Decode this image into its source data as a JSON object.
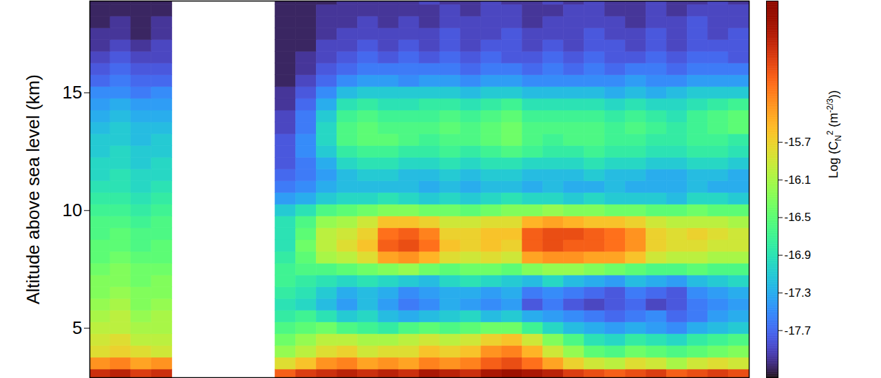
{
  "chart_data": {
    "type": "heatmap",
    "ylabel": "Altitude above sea level (km)",
    "ylim": [
      2.9,
      18.9
    ],
    "yticks": [
      5,
      10,
      15
    ],
    "xlim": [
      0,
      32
    ],
    "tick_labels": "y",
    "x": [
      0,
      1,
      2,
      3,
      9,
      10,
      11,
      12,
      13,
      14,
      15,
      16,
      17,
      18,
      19,
      20,
      21,
      22,
      23,
      24,
      25,
      26,
      27,
      28,
      29,
      30,
      31
    ],
    "y": [
      3.0,
      3.5,
      4.0,
      4.5,
      5.0,
      5.5,
      6.0,
      6.5,
      7.0,
      7.5,
      8.0,
      8.5,
      9.0,
      9.5,
      10.0,
      10.5,
      11.0,
      11.5,
      12.0,
      12.5,
      13.0,
      13.5,
      14.0,
      14.5,
      15.0,
      15.5,
      16.0,
      16.5,
      17.0,
      17.5,
      18.0,
      18.5,
      19.0
    ],
    "values": [
      [
        -14.7,
        -14.6,
        -14.8,
        -14.7,
        -15.0,
        -14.8,
        -14.7,
        -14.6,
        -14.7,
        -14.6,
        -14.7,
        -14.5,
        -14.6,
        -14.7,
        -14.5,
        -14.4,
        -14.5,
        -14.6,
        -14.8,
        -14.9,
        -15.0,
        -14.9,
        -14.8,
        -15.0,
        -14.9,
        -14.8,
        -14.9
      ],
      [
        -15.3,
        -15.2,
        -15.4,
        -15.3,
        -15.8,
        -15.6,
        -15.3,
        -15.2,
        -15.4,
        -15.3,
        -15.4,
        -15.2,
        -15.3,
        -15.2,
        -15.0,
        -14.9,
        -15.1,
        -15.4,
        -15.7,
        -15.9,
        -16.0,
        -15.8,
        -15.9,
        -16.1,
        -15.9,
        -15.8,
        -15.9
      ],
      [
        -15.8,
        -15.7,
        -15.8,
        -15.9,
        -16.2,
        -16.0,
        -15.8,
        -15.7,
        -15.9,
        -15.8,
        -15.8,
        -15.6,
        -15.7,
        -15.6,
        -15.3,
        -15.2,
        -15.5,
        -15.9,
        -16.2,
        -16.5,
        -16.6,
        -16.4,
        -16.5,
        -16.6,
        -16.5,
        -16.4,
        -16.3
      ],
      [
        -15.9,
        -15.8,
        -16.0,
        -16.0,
        -16.4,
        -16.2,
        -16.0,
        -16.0,
        -16.1,
        -16.1,
        -16.0,
        -15.9,
        -16.0,
        -15.9,
        -15.7,
        -15.6,
        -15.9,
        -16.3,
        -16.6,
        -16.9,
        -17.0,
        -16.8,
        -16.9,
        -17.0,
        -16.8,
        -16.7,
        -16.6
      ],
      [
        -16.0,
        -16.0,
        -16.1,
        -16.1,
        -16.6,
        -16.5,
        -16.4,
        -16.6,
        -16.7,
        -16.8,
        -16.6,
        -16.5,
        -16.6,
        -16.5,
        -16.4,
        -16.4,
        -16.7,
        -17.0,
        -17.2,
        -17.3,
        -17.4,
        -17.3,
        -17.4,
        -17.5,
        -17.3,
        -17.2,
        -17.1
      ],
      [
        -16.1,
        -16.0,
        -16.2,
        -16.1,
        -16.8,
        -16.7,
        -16.9,
        -17.1,
        -17.0,
        -17.2,
        -17.3,
        -17.2,
        -17.1,
        -17.0,
        -17.2,
        -17.1,
        -17.3,
        -17.4,
        -17.5,
        -17.6,
        -17.7,
        -17.6,
        -17.5,
        -17.7,
        -17.6,
        -17.4,
        -17.3
      ],
      [
        -16.2,
        -16.1,
        -16.3,
        -16.2,
        -16.9,
        -17.0,
        -17.2,
        -17.4,
        -17.2,
        -17.4,
        -17.6,
        -17.5,
        -17.3,
        -17.4,
        -17.5,
        -17.4,
        -17.8,
        -17.6,
        -17.8,
        -17.9,
        -17.8,
        -17.7,
        -17.9,
        -17.8,
        -17.6,
        -17.5,
        -17.4
      ],
      [
        -16.3,
        -16.2,
        -16.3,
        -16.3,
        -16.8,
        -16.9,
        -17.1,
        -17.3,
        -17.2,
        -17.3,
        -17.5,
        -17.4,
        -17.3,
        -17.3,
        -17.4,
        -17.3,
        -17.6,
        -17.5,
        -17.6,
        -17.7,
        -17.8,
        -17.6,
        -17.7,
        -17.8,
        -17.5,
        -17.4,
        -17.3
      ],
      [
        -16.3,
        -16.3,
        -16.4,
        -16.3,
        -16.7,
        -16.8,
        -16.9,
        -17.0,
        -16.9,
        -17.0,
        -17.1,
        -17.2,
        -17.0,
        -16.9,
        -17.0,
        -17.1,
        -17.2,
        -17.0,
        -17.2,
        -17.3,
        -17.4,
        -17.2,
        -17.3,
        -17.4,
        -17.2,
        -17.1,
        -17.0
      ],
      [
        -16.4,
        -16.3,
        -16.4,
        -16.4,
        -16.7,
        -16.6,
        -16.6,
        -16.5,
        -16.4,
        -16.3,
        -16.2,
        -16.4,
        -16.5,
        -16.4,
        -16.4,
        -16.5,
        -16.3,
        -16.2,
        -16.2,
        -16.3,
        -16.4,
        -16.5,
        -16.6,
        -16.6,
        -16.5,
        -16.6,
        -16.6
      ],
      [
        -16.5,
        -16.4,
        -16.5,
        -16.5,
        -16.8,
        -16.5,
        -16.1,
        -16.0,
        -15.8,
        -15.4,
        -15.3,
        -15.5,
        -15.8,
        -15.9,
        -15.8,
        -15.9,
        -15.4,
        -15.3,
        -15.3,
        -15.4,
        -15.4,
        -15.6,
        -15.9,
        -16.0,
        -16.0,
        -16.1,
        -16.1
      ],
      [
        -16.5,
        -16.5,
        -16.6,
        -16.5,
        -16.9,
        -16.4,
        -16.0,
        -15.8,
        -15.6,
        -15.0,
        -14.9,
        -15.1,
        -15.6,
        -15.7,
        -15.6,
        -15.7,
        -15.0,
        -14.9,
        -15.0,
        -15.0,
        -15.1,
        -15.3,
        -15.7,
        -15.8,
        -15.8,
        -15.9,
        -15.9
      ],
      [
        -16.6,
        -16.5,
        -16.6,
        -16.6,
        -16.9,
        -16.5,
        -16.0,
        -15.9,
        -15.7,
        -15.1,
        -15.0,
        -15.2,
        -15.7,
        -15.7,
        -15.6,
        -15.6,
        -15.0,
        -14.9,
        -14.9,
        -15.0,
        -15.1,
        -15.3,
        -15.7,
        -15.8,
        -15.7,
        -15.8,
        -15.9
      ],
      [
        -16.6,
        -16.6,
        -16.7,
        -16.6,
        -16.9,
        -16.6,
        -16.2,
        -16.1,
        -15.9,
        -15.6,
        -15.6,
        -15.7,
        -15.9,
        -15.9,
        -15.8,
        -15.8,
        -15.5,
        -15.4,
        -15.5,
        -15.6,
        -15.6,
        -15.7,
        -15.9,
        -16.0,
        -16.0,
        -16.0,
        -16.1
      ],
      [
        -16.7,
        -16.7,
        -16.8,
        -16.7,
        -17.1,
        -16.9,
        -16.6,
        -16.5,
        -16.4,
        -16.3,
        -16.3,
        -16.4,
        -16.4,
        -16.5,
        -16.4,
        -16.3,
        -16.3,
        -16.2,
        -16.3,
        -16.3,
        -16.4,
        -16.4,
        -16.5,
        -16.5,
        -16.4,
        -16.5,
        -16.5
      ],
      [
        -16.8,
        -16.8,
        -16.9,
        -16.8,
        -17.4,
        -17.3,
        -17.1,
        -17.0,
        -17.0,
        -16.9,
        -17.0,
        -17.1,
        -17.0,
        -17.1,
        -17.0,
        -16.9,
        -17.0,
        -17.0,
        -17.1,
        -17.0,
        -17.1,
        -17.1,
        -17.1,
        -17.2,
        -17.0,
        -17.0,
        -17.1
      ],
      [
        -16.9,
        -16.9,
        -17.0,
        -16.9,
        -17.6,
        -17.5,
        -17.3,
        -17.2,
        -17.2,
        -17.2,
        -17.2,
        -17.3,
        -17.2,
        -17.3,
        -17.2,
        -17.2,
        -17.3,
        -17.2,
        -17.3,
        -17.3,
        -17.2,
        -17.3,
        -17.3,
        -17.3,
        -17.2,
        -17.3,
        -17.3
      ],
      [
        -17.0,
        -16.9,
        -17.0,
        -17.0,
        -17.7,
        -17.6,
        -17.4,
        -17.2,
        -17.1,
        -17.1,
        -17.2,
        -17.2,
        -17.1,
        -17.2,
        -17.1,
        -17.1,
        -17.2,
        -17.2,
        -17.2,
        -17.1,
        -17.2,
        -17.2,
        -17.3,
        -17.3,
        -17.2,
        -17.2,
        -17.3
      ],
      [
        -17.0,
        -17.0,
        -17.1,
        -17.0,
        -17.8,
        -17.6,
        -17.3,
        -17.0,
        -16.9,
        -16.9,
        -17.0,
        -17.0,
        -16.9,
        -17.0,
        -16.9,
        -16.9,
        -17.0,
        -17.0,
        -17.0,
        -16.9,
        -17.0,
        -17.0,
        -17.1,
        -17.1,
        -17.0,
        -17.0,
        -17.1
      ],
      [
        -17.1,
        -17.0,
        -17.1,
        -17.1,
        -17.8,
        -17.5,
        -17.1,
        -16.8,
        -16.7,
        -16.7,
        -16.8,
        -16.8,
        -16.7,
        -16.8,
        -16.7,
        -16.6,
        -16.7,
        -16.8,
        -16.8,
        -16.7,
        -16.8,
        -16.8,
        -16.9,
        -16.9,
        -16.8,
        -16.8,
        -16.9
      ],
      [
        -17.1,
        -17.1,
        -17.2,
        -17.1,
        -17.8,
        -17.5,
        -17.0,
        -16.6,
        -16.5,
        -16.5,
        -16.6,
        -16.7,
        -16.6,
        -16.6,
        -16.5,
        -16.4,
        -16.6,
        -16.7,
        -16.6,
        -16.6,
        -16.7,
        -16.7,
        -16.8,
        -16.8,
        -16.7,
        -16.7,
        -16.8
      ],
      [
        -17.2,
        -17.1,
        -17.2,
        -17.2,
        -17.9,
        -17.6,
        -17.0,
        -16.6,
        -16.5,
        -16.6,
        -16.6,
        -16.6,
        -16.5,
        -16.6,
        -16.5,
        -16.4,
        -16.6,
        -16.6,
        -16.6,
        -16.6,
        -16.7,
        -16.6,
        -16.7,
        -16.8,
        -16.7,
        -16.6,
        -16.5
      ],
      [
        -17.3,
        -17.2,
        -17.3,
        -17.3,
        -17.9,
        -17.6,
        -17.1,
        -16.7,
        -16.6,
        -16.7,
        -16.7,
        -16.7,
        -16.6,
        -16.7,
        -16.6,
        -16.5,
        -16.7,
        -16.7,
        -16.7,
        -16.7,
        -16.8,
        -16.7,
        -16.8,
        -16.9,
        -16.7,
        -16.6,
        -16.5
      ],
      [
        -17.4,
        -17.3,
        -17.4,
        -17.4,
        -18.0,
        -17.7,
        -17.3,
        -16.9,
        -16.8,
        -16.9,
        -16.9,
        -16.8,
        -16.8,
        -16.9,
        -16.8,
        -16.7,
        -16.9,
        -16.9,
        -16.9,
        -16.9,
        -17.0,
        -16.9,
        -17.0,
        -17.0,
        -16.9,
        -16.8,
        -16.7
      ],
      [
        -17.5,
        -17.5,
        -17.6,
        -17.5,
        -18.0,
        -17.8,
        -17.5,
        -17.2,
        -17.1,
        -17.1,
        -17.1,
        -17.1,
        -17.1,
        -17.2,
        -17.1,
        -17.1,
        -17.2,
        -17.2,
        -17.2,
        -17.2,
        -17.3,
        -17.2,
        -17.3,
        -17.2,
        -17.1,
        -17.1,
        -17.1
      ],
      [
        -17.7,
        -17.6,
        -17.7,
        -17.7,
        -18.1,
        -17.9,
        -17.7,
        -17.5,
        -17.4,
        -17.4,
        -17.5,
        -17.4,
        -17.4,
        -17.5,
        -17.4,
        -17.4,
        -17.5,
        -17.5,
        -17.5,
        -17.5,
        -17.5,
        -17.4,
        -17.5,
        -17.5,
        -17.4,
        -17.4,
        -17.4
      ],
      [
        -17.8,
        -17.7,
        -17.8,
        -17.8,
        -18.1,
        -18.0,
        -17.8,
        -17.7,
        -17.6,
        -17.6,
        -17.6,
        -17.6,
        -17.6,
        -17.7,
        -17.6,
        -17.6,
        -17.7,
        -17.6,
        -17.7,
        -17.6,
        -17.7,
        -17.6,
        -17.6,
        -17.7,
        -17.6,
        -17.6,
        -17.6
      ],
      [
        -17.9,
        -17.8,
        -17.9,
        -17.9,
        -18.1,
        -18.0,
        -17.9,
        -17.8,
        -17.7,
        -17.8,
        -17.7,
        -17.8,
        -17.7,
        -17.8,
        -17.7,
        -17.8,
        -17.8,
        -17.7,
        -17.8,
        -17.7,
        -17.8,
        -17.8,
        -17.7,
        -17.8,
        -17.7,
        -17.7,
        -17.8
      ],
      [
        -18.0,
        -17.9,
        -18.0,
        -17.9,
        -18.1,
        -18.1,
        -17.9,
        -17.9,
        -17.8,
        -17.9,
        -17.8,
        -17.9,
        -17.8,
        -17.9,
        -17.8,
        -17.8,
        -17.9,
        -17.8,
        -17.9,
        -17.8,
        -17.8,
        -17.9,
        -17.8,
        -17.9,
        -17.8,
        -17.8,
        -17.8
      ],
      [
        -18.0,
        -18.0,
        -18.1,
        -18.0,
        -18.1,
        -18.1,
        -18.0,
        -17.9,
        -17.9,
        -17.9,
        -17.9,
        -17.9,
        -17.8,
        -17.9,
        -17.9,
        -17.8,
        -17.9,
        -17.9,
        -17.9,
        -17.8,
        -17.9,
        -17.9,
        -17.8,
        -17.9,
        -17.8,
        -17.9,
        -17.8
      ],
      [
        -18.1,
        -18.0,
        -18.1,
        -18.0,
        -18.1,
        -18.1,
        -18.0,
        -18.0,
        -17.9,
        -18.0,
        -17.9,
        -18.0,
        -17.9,
        -17.9,
        -17.9,
        -17.9,
        -18.0,
        -17.9,
        -17.9,
        -17.9,
        -17.9,
        -18.0,
        -17.9,
        -17.9,
        -17.8,
        -17.9,
        -17.9
      ],
      [
        -18.1,
        -18.1,
        -18.1,
        -18.1,
        -18.1,
        -18.1,
        -18.0,
        -18.0,
        -18.0,
        -18.0,
        -18.0,
        -18.0,
        -17.9,
        -18.0,
        -17.9,
        -17.9,
        -18.0,
        -18.0,
        -17.9,
        -17.9,
        -18.0,
        -18.0,
        -17.9,
        -18.0,
        -17.9,
        -17.9,
        -17.9
      ],
      [
        -18.1,
        -18.1,
        -18.1,
        -18.1,
        -18.1,
        -18.1,
        -18.1,
        -18.0,
        -18.0,
        -18.0,
        -18.0,
        -17.9,
        -18.0,
        -18.0,
        -17.9,
        -18.0,
        -18.0,
        -17.9,
        -18.0,
        -17.9,
        -18.0,
        -18.0,
        -17.9,
        -18.0,
        -18.0,
        -17.9,
        -18.0
      ]
    ],
    "colorbar": {
      "label": [
        {
          "text": "Log (C"
        },
        {
          "text": "N",
          "sub": true
        },
        {
          "text": "2",
          "sup": true
        },
        {
          "text": " (m"
        },
        {
          "text": "-2/3",
          "sup": true
        },
        {
          "text": "))"
        }
      ],
      "range": [
        -18.2,
        -14.2
      ],
      "ticks": [
        -17.7,
        -17.3,
        -16.9,
        -16.5,
        -16.1,
        -15.7
      ]
    }
  }
}
